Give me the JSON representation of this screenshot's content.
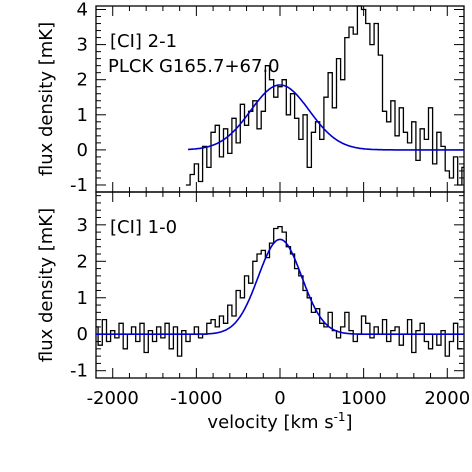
{
  "chart_data": [
    {
      "type": "line",
      "panel": "top",
      "annotations": [
        "[CI] 2-1",
        "PLCK G165.7+67.0"
      ],
      "xlabel": "",
      "ylabel": "flux density [mK]",
      "xlim": [
        -2200,
        2200
      ],
      "ylim": [
        -1.2,
        4.1
      ],
      "yticks": [
        -1,
        0,
        1,
        2,
        3,
        4
      ],
      "ytick_labels": [
        "-1",
        "0",
        "1",
        "2",
        "3",
        "4"
      ],
      "xticks": [
        -2000,
        -1000,
        0,
        1000,
        2000
      ],
      "xtick_labels": [],
      "grid": false,
      "series": [
        {
          "style": "step",
          "color": "#000000",
          "x": [
            -1100,
            -1050,
            -1000,
            -950,
            -900,
            -850,
            -800,
            -750,
            -700,
            -650,
            -600,
            -550,
            -500,
            -450,
            -400,
            -350,
            -300,
            -250,
            -200,
            -150,
            -100,
            -50,
            0,
            50,
            100,
            150,
            200,
            250,
            300,
            350,
            400,
            450,
            500,
            550,
            600,
            650,
            700,
            750,
            800,
            850,
            900,
            950,
            1000,
            1050,
            1100,
            1150,
            1200,
            1250,
            1300,
            1350,
            1400,
            1450,
            1500,
            1550,
            1600,
            1650,
            1700,
            1750,
            1800,
            1850,
            1900,
            1950,
            2000,
            2050,
            2100,
            2150,
            2200
          ],
          "y": [
            -1.0,
            -0.7,
            -0.4,
            -0.9,
            0.1,
            -0.5,
            0.5,
            0.7,
            -0.2,
            0.6,
            -0.1,
            0.9,
            0.2,
            1.3,
            0.7,
            1.1,
            1.4,
            0.6,
            1.1,
            2.4,
            2.0,
            1.5,
            1.8,
            2.0,
            1.0,
            1.6,
            0.9,
            0.3,
            1.0,
            -0.5,
            0.5,
            0.8,
            0.3,
            1.5,
            2.2,
            1.2,
            2.6,
            2.0,
            3.2,
            3.5,
            3.3,
            4.1,
            4.0,
            3.6,
            3.0,
            3.6,
            2.7,
            1.1,
            0.8,
            1.4,
            0.4,
            1.2,
            0.5,
            0.2,
            0.8,
            -0.3,
            0.6,
            0.3,
            1.2,
            -0.4,
            0.5,
            0.1,
            -0.6,
            -0.8,
            -0.2,
            -1.0,
            -0.5
          ]
        },
        {
          "style": "line",
          "color": "#0000cc",
          "fit": "gaussian",
          "x_range": [
            -1100,
            2200
          ],
          "amplitude": 1.85,
          "center": 0,
          "sigma": 350
        }
      ]
    },
    {
      "type": "line",
      "panel": "bottom",
      "annotations": [
        "[CI] 1-0"
      ],
      "xlabel": "velocity [km s",
      "xlabel_sup": "-1",
      "xlabel_tail": "]",
      "ylabel": "flux density [mK]",
      "xlim": [
        -2200,
        2200
      ],
      "ylim": [
        -1.2,
        3.9
      ],
      "yticks": [
        -1,
        0,
        1,
        2,
        3
      ],
      "ytick_labels": [
        "-1",
        "0",
        "1",
        "2",
        "3"
      ],
      "xticks": [
        -2000,
        -1000,
        0,
        1000,
        2000
      ],
      "xtick_labels": [
        "-2000",
        "-1000",
        "0",
        "1000",
        "2000"
      ],
      "grid": false,
      "series": [
        {
          "style": "step",
          "color": "#000000",
          "x": [
            -2200,
            -2150,
            -2100,
            -2050,
            -2000,
            -1950,
            -1900,
            -1850,
            -1800,
            -1750,
            -1700,
            -1650,
            -1600,
            -1550,
            -1500,
            -1450,
            -1400,
            -1350,
            -1300,
            -1250,
            -1200,
            -1150,
            -1100,
            -1050,
            -1000,
            -950,
            -900,
            -850,
            -800,
            -750,
            -700,
            -650,
            -600,
            -550,
            -500,
            -450,
            -400,
            -350,
            -300,
            -250,
            -200,
            -150,
            -100,
            -50,
            0,
            50,
            100,
            150,
            200,
            250,
            300,
            350,
            400,
            450,
            500,
            550,
            600,
            650,
            700,
            750,
            800,
            850,
            900,
            950,
            1000,
            1050,
            1100,
            1150,
            1200,
            1250,
            1300,
            1350,
            1400,
            1450,
            1500,
            1550,
            1600,
            1650,
            1700,
            1750,
            1800,
            1850,
            1900,
            1950,
            2000,
            2050,
            2100,
            2150
          ],
          "y": [
            0.2,
            -0.3,
            0.4,
            -0.2,
            0.1,
            -0.1,
            0.3,
            -0.4,
            0.0,
            0.2,
            -0.2,
            0.3,
            -0.5,
            0.1,
            -0.2,
            0.2,
            -0.1,
            0.3,
            -0.4,
            0.2,
            -0.6,
            0.1,
            -0.2,
            0.0,
            0.2,
            -0.1,
            0.0,
            0.3,
            0.4,
            0.2,
            0.5,
            0.3,
            0.8,
            0.5,
            1.2,
            1.0,
            1.6,
            1.4,
            2.0,
            2.2,
            2.3,
            2.1,
            2.5,
            2.9,
            2.95,
            2.8,
            2.4,
            2.2,
            1.8,
            1.6,
            1.2,
            1.0,
            0.6,
            0.7,
            0.3,
            0.2,
            0.6,
            0.1,
            -0.1,
            0.2,
            0.6,
            0.1,
            -0.2,
            0.0,
            0.5,
            0.3,
            -0.1,
            0.2,
            0.0,
            0.4,
            -0.2,
            0.1,
            0.2,
            -0.3,
            0.0,
            0.4,
            -0.5,
            0.1,
            0.3,
            -0.2,
            -0.4,
            0.0,
            -0.3,
            0.1,
            -0.6,
            -0.2,
            0.3,
            -0.4
          ]
        },
        {
          "style": "line",
          "color": "#0000cc",
          "fit": "gaussian",
          "x_range": [
            -2200,
            2200
          ],
          "amplitude": 2.6,
          "center": 0,
          "sigma": 260
        }
      ]
    }
  ]
}
